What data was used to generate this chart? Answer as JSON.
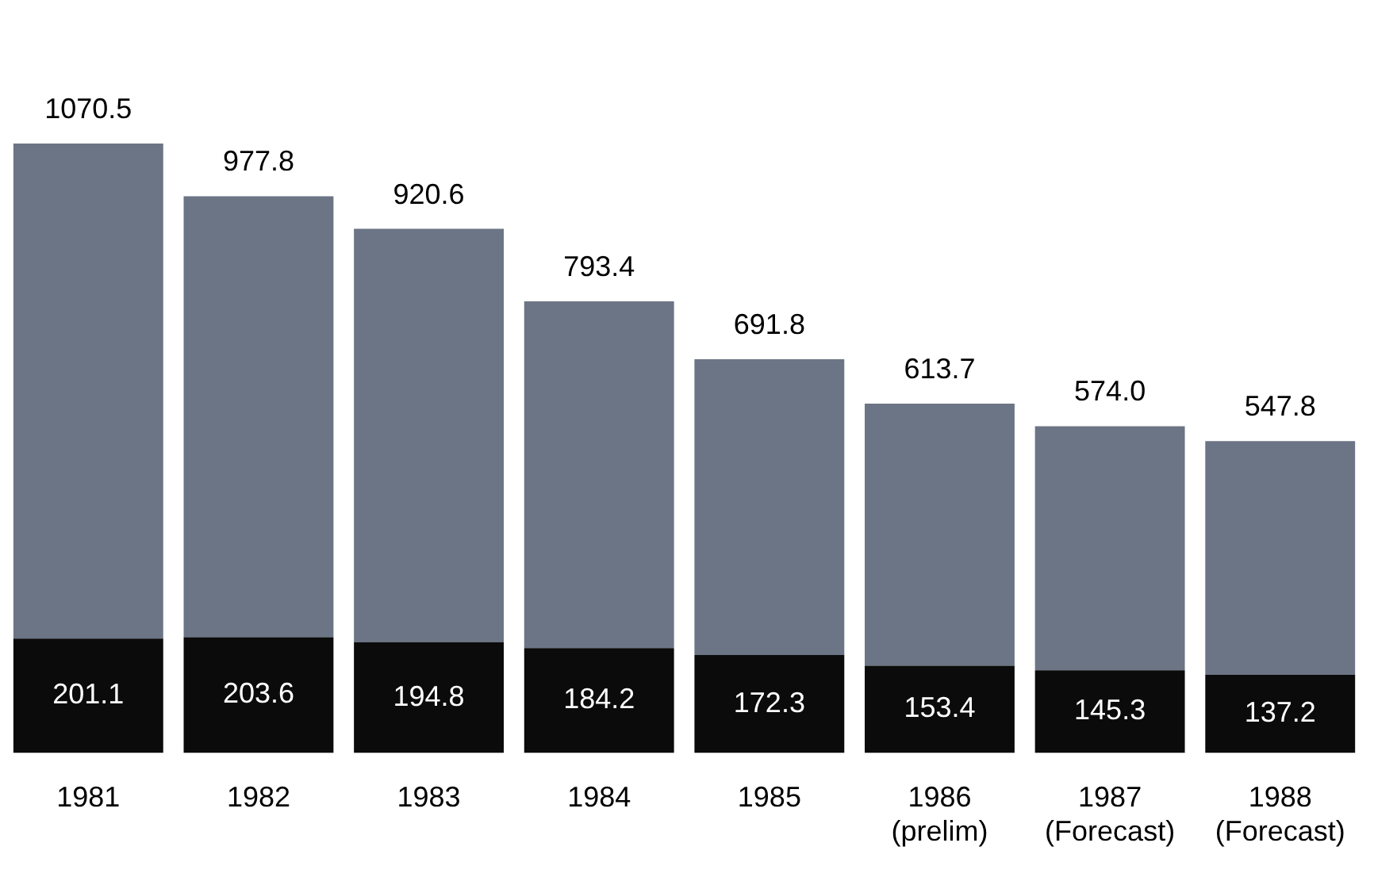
{
  "chart_data": {
    "type": "bar",
    "stacked": true,
    "categories": [
      "1981",
      "1982",
      "1983",
      "1984",
      "1985",
      "1986\n(prelim)",
      "1987\n(Forecast)",
      "1988\n(Forecast)"
    ],
    "series": [
      {
        "color": "#0b0b0c",
        "values": [
          201.1,
          203.6,
          194.8,
          184.2,
          172.3,
          153.4,
          145.3,
          137.2
        ],
        "value_labels": [
          "201.1",
          "203.6",
          "194.8",
          "184.2",
          "172.3",
          "153.4",
          "145.3",
          "137.2"
        ]
      },
      {
        "color": "#6b7585",
        "values": [
          869.4,
          774.2,
          725.8,
          609.2,
          519.5,
          460.3,
          428.7,
          410.6
        ]
      }
    ],
    "totals": [
      "1070.5",
      "977.8",
      "920.6",
      "793.4",
      "691.8",
      "613.7",
      "574.0",
      "547.8"
    ],
    "grid": false,
    "legend": false
  }
}
